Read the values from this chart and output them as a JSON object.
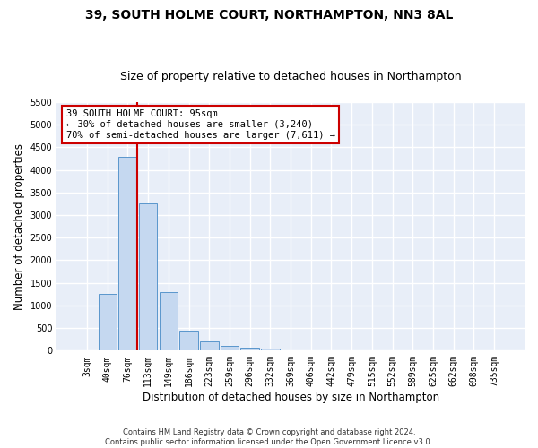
{
  "title_line1": "39, SOUTH HOLME COURT, NORTHAMPTON, NN3 8AL",
  "title_line2": "Size of property relative to detached houses in Northampton",
  "xlabel": "Distribution of detached houses by size in Northampton",
  "ylabel": "Number of detached properties",
  "footnote": "Contains HM Land Registry data © Crown copyright and database right 2024.\nContains public sector information licensed under the Open Government Licence v3.0.",
  "categories": [
    "3sqm",
    "40sqm",
    "76sqm",
    "113sqm",
    "149sqm",
    "186sqm",
    "223sqm",
    "259sqm",
    "296sqm",
    "332sqm",
    "369sqm",
    "406sqm",
    "442sqm",
    "479sqm",
    "515sqm",
    "552sqm",
    "589sqm",
    "625sqm",
    "662sqm",
    "698sqm",
    "735sqm"
  ],
  "values": [
    0,
    1250,
    4300,
    3250,
    1300,
    450,
    200,
    100,
    75,
    50,
    0,
    0,
    0,
    0,
    0,
    0,
    0,
    0,
    0,
    0,
    0
  ],
  "bar_color": "#c5d8f0",
  "bar_edge_color": "#5a96cc",
  "red_line_x": 2.45,
  "annotation_text": "39 SOUTH HOLME COURT: 95sqm\n← 30% of detached houses are smaller (3,240)\n70% of semi-detached houses are larger (7,611) →",
  "annotation_box_color": "#ffffff",
  "annotation_border_color": "#cc0000",
  "ylim": [
    0,
    5500
  ],
  "yticks": [
    0,
    500,
    1000,
    1500,
    2000,
    2500,
    3000,
    3500,
    4000,
    4500,
    5000,
    5500
  ],
  "background_color": "#e8eef8",
  "grid_color": "#ffffff",
  "fig_background": "#ffffff",
  "title_fontsize": 10,
  "subtitle_fontsize": 9,
  "axis_label_fontsize": 8.5,
  "tick_fontsize": 7,
  "annot_fontsize": 7.5
}
